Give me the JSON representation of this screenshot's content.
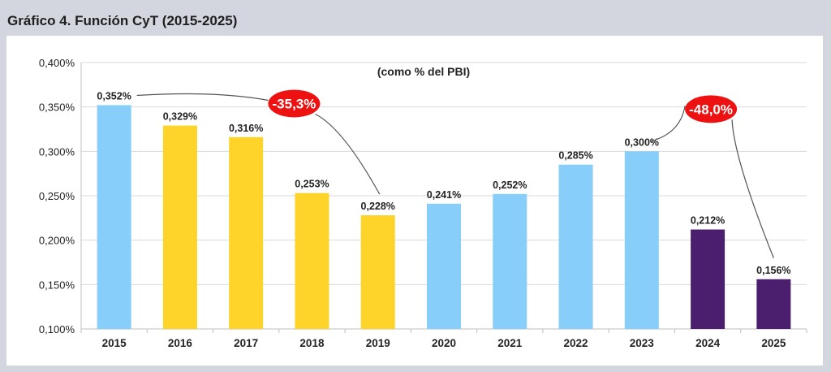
{
  "page_title": "Gráfico 4. Función CyT (2015-2025)",
  "chart_data": {
    "type": "bar",
    "title": "Gráfico 4. Función CyT (2015-2025)",
    "subtitle": "(como % del PBI)",
    "categories": [
      "2015",
      "2016",
      "2017",
      "2018",
      "2019",
      "2020",
      "2021",
      "2022",
      "2023",
      "2024",
      "2025"
    ],
    "values": [
      0.352,
      0.329,
      0.316,
      0.253,
      0.228,
      0.241,
      0.252,
      0.285,
      0.3,
      0.212,
      0.156
    ],
    "value_labels": [
      "0,352%",
      "0,329%",
      "0,316%",
      "0,253%",
      "0,228%",
      "0,241%",
      "0,252%",
      "0,285%",
      "0,300%",
      "0,212%",
      "0,156%"
    ],
    "bar_colors": [
      "#87cefa",
      "#ffd42a",
      "#ffd42a",
      "#ffd42a",
      "#ffd42a",
      "#87cefa",
      "#87cefa",
      "#87cefa",
      "#87cefa",
      "#4b1f6e",
      "#4b1f6e"
    ],
    "ylim": [
      0.1,
      0.4
    ],
    "yticks": [
      0.1,
      0.15,
      0.2,
      0.25,
      0.3,
      0.35,
      0.4
    ],
    "ytick_labels": [
      "0,100%",
      "0,150%",
      "0,200%",
      "0,250%",
      "0,300%",
      "0,350%",
      "0,400%"
    ],
    "grid": "horizontal",
    "annotations": [
      {
        "label": "-35,3%",
        "from": "2015",
        "to": "2019",
        "color": "#ee1111"
      },
      {
        "label": "-48,0%",
        "from": "2023",
        "to": "2025",
        "color": "#ee1111"
      }
    ]
  }
}
